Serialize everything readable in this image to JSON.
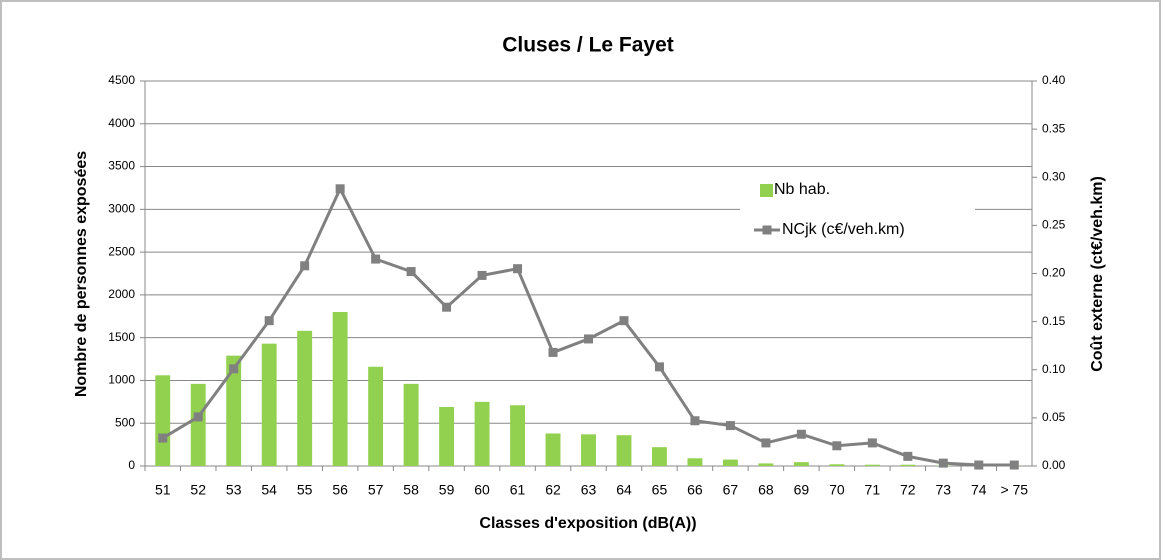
{
  "chart_data": {
    "type": "bar",
    "title": "Cluses / Le Fayet",
    "xlabel": "Classes d'exposition (dB(A))",
    "ylabel": "Nombre de personnes exposées",
    "y2label": "Coût externe (ct€/veh.km)",
    "categories": [
      "51",
      "52",
      "53",
      "54",
      "55",
      "56",
      "57",
      "58",
      "59",
      "60",
      "61",
      "62",
      "63",
      "64",
      "65",
      "66",
      "67",
      "68",
      "69",
      "70",
      "71",
      "72",
      "73",
      "74",
      "> 75"
    ],
    "series": [
      {
        "name": "Nb hab.",
        "type": "bar",
        "color": "#92d050",
        "values": [
          1060,
          960,
          1290,
          1430,
          1580,
          1800,
          1160,
          960,
          690,
          750,
          710,
          380,
          370,
          360,
          220,
          90,
          75,
          30,
          45,
          20,
          15,
          15,
          5,
          3,
          2
        ]
      },
      {
        "name": "NCjk (c€/veh.km)",
        "type": "line",
        "axis": "y2",
        "color": "#808080",
        "values": [
          0.029,
          0.051,
          0.101,
          0.151,
          0.208,
          0.288,
          0.215,
          0.202,
          0.165,
          0.198,
          0.205,
          0.118,
          0.132,
          0.151,
          0.103,
          0.047,
          0.042,
          0.024,
          0.033,
          0.021,
          0.024,
          0.01,
          0.003,
          0.001,
          0.001
        ]
      }
    ],
    "ylim": [
      0,
      4500
    ],
    "yticks": [
      0,
      500,
      1000,
      1500,
      2000,
      2500,
      3000,
      3500,
      4000,
      4500
    ],
    "y2lim": [
      0,
      0.4
    ],
    "y2ticks": [
      {
        "value": 0,
        "label": "0.00"
      },
      {
        "value": 0.05,
        "label": "0.05"
      },
      {
        "value": 0.1,
        "label": "0.10"
      },
      {
        "value": 0.15,
        "label": "0.15"
      },
      {
        "value": 0.2,
        "label": "0.20"
      },
      {
        "value": 0.25,
        "label": "0.25"
      },
      {
        "value": 0.3,
        "label": "0.30"
      },
      {
        "value": 0.35,
        "label": "0.35"
      },
      {
        "value": 0.4,
        "label": "0.40"
      }
    ],
    "grid": true,
    "legend": "upper right"
  }
}
